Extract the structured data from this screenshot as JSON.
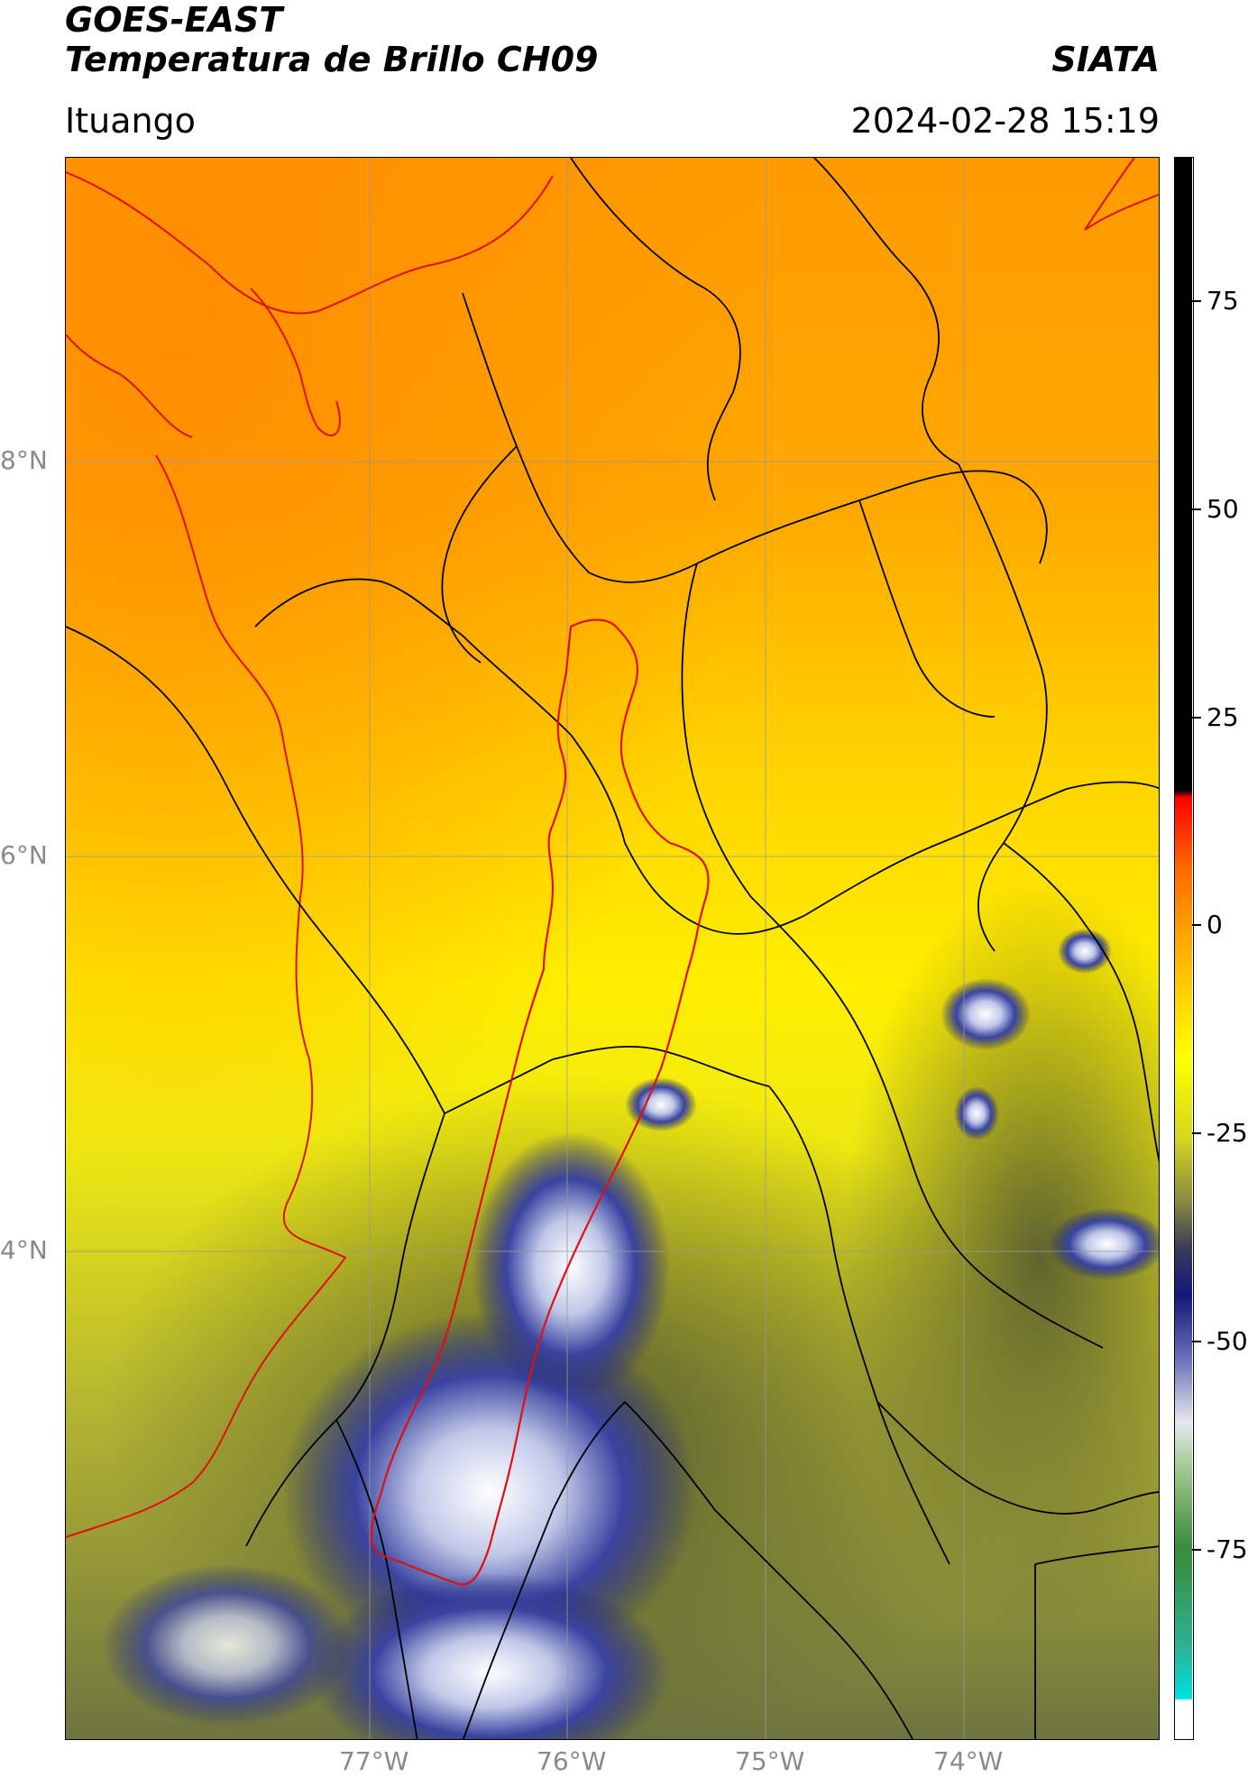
{
  "header": {
    "satellite": "GOES-EAST",
    "product": "Temperatura de Brillo CH09",
    "agency": "SIATA",
    "location": "Ituango",
    "timestamp": "2024-02-28 15:19"
  },
  "map": {
    "lon_ticks": [
      "77°W",
      "76°W",
      "75°W",
      "74°W"
    ],
    "lat_ticks": [
      "8°N",
      "6°N",
      "4°N"
    ],
    "colors": {
      "border_lines": "#000000",
      "basin_outline": "#e01010",
      "coastline": "#e01010",
      "gridlines": "#9a9a9a"
    }
  },
  "colorbar": {
    "tick_labels": [
      "75",
      "50",
      "25",
      "0",
      "-25",
      "-50",
      "-75"
    ],
    "range": [
      -95,
      95
    ],
    "units": ""
  }
}
